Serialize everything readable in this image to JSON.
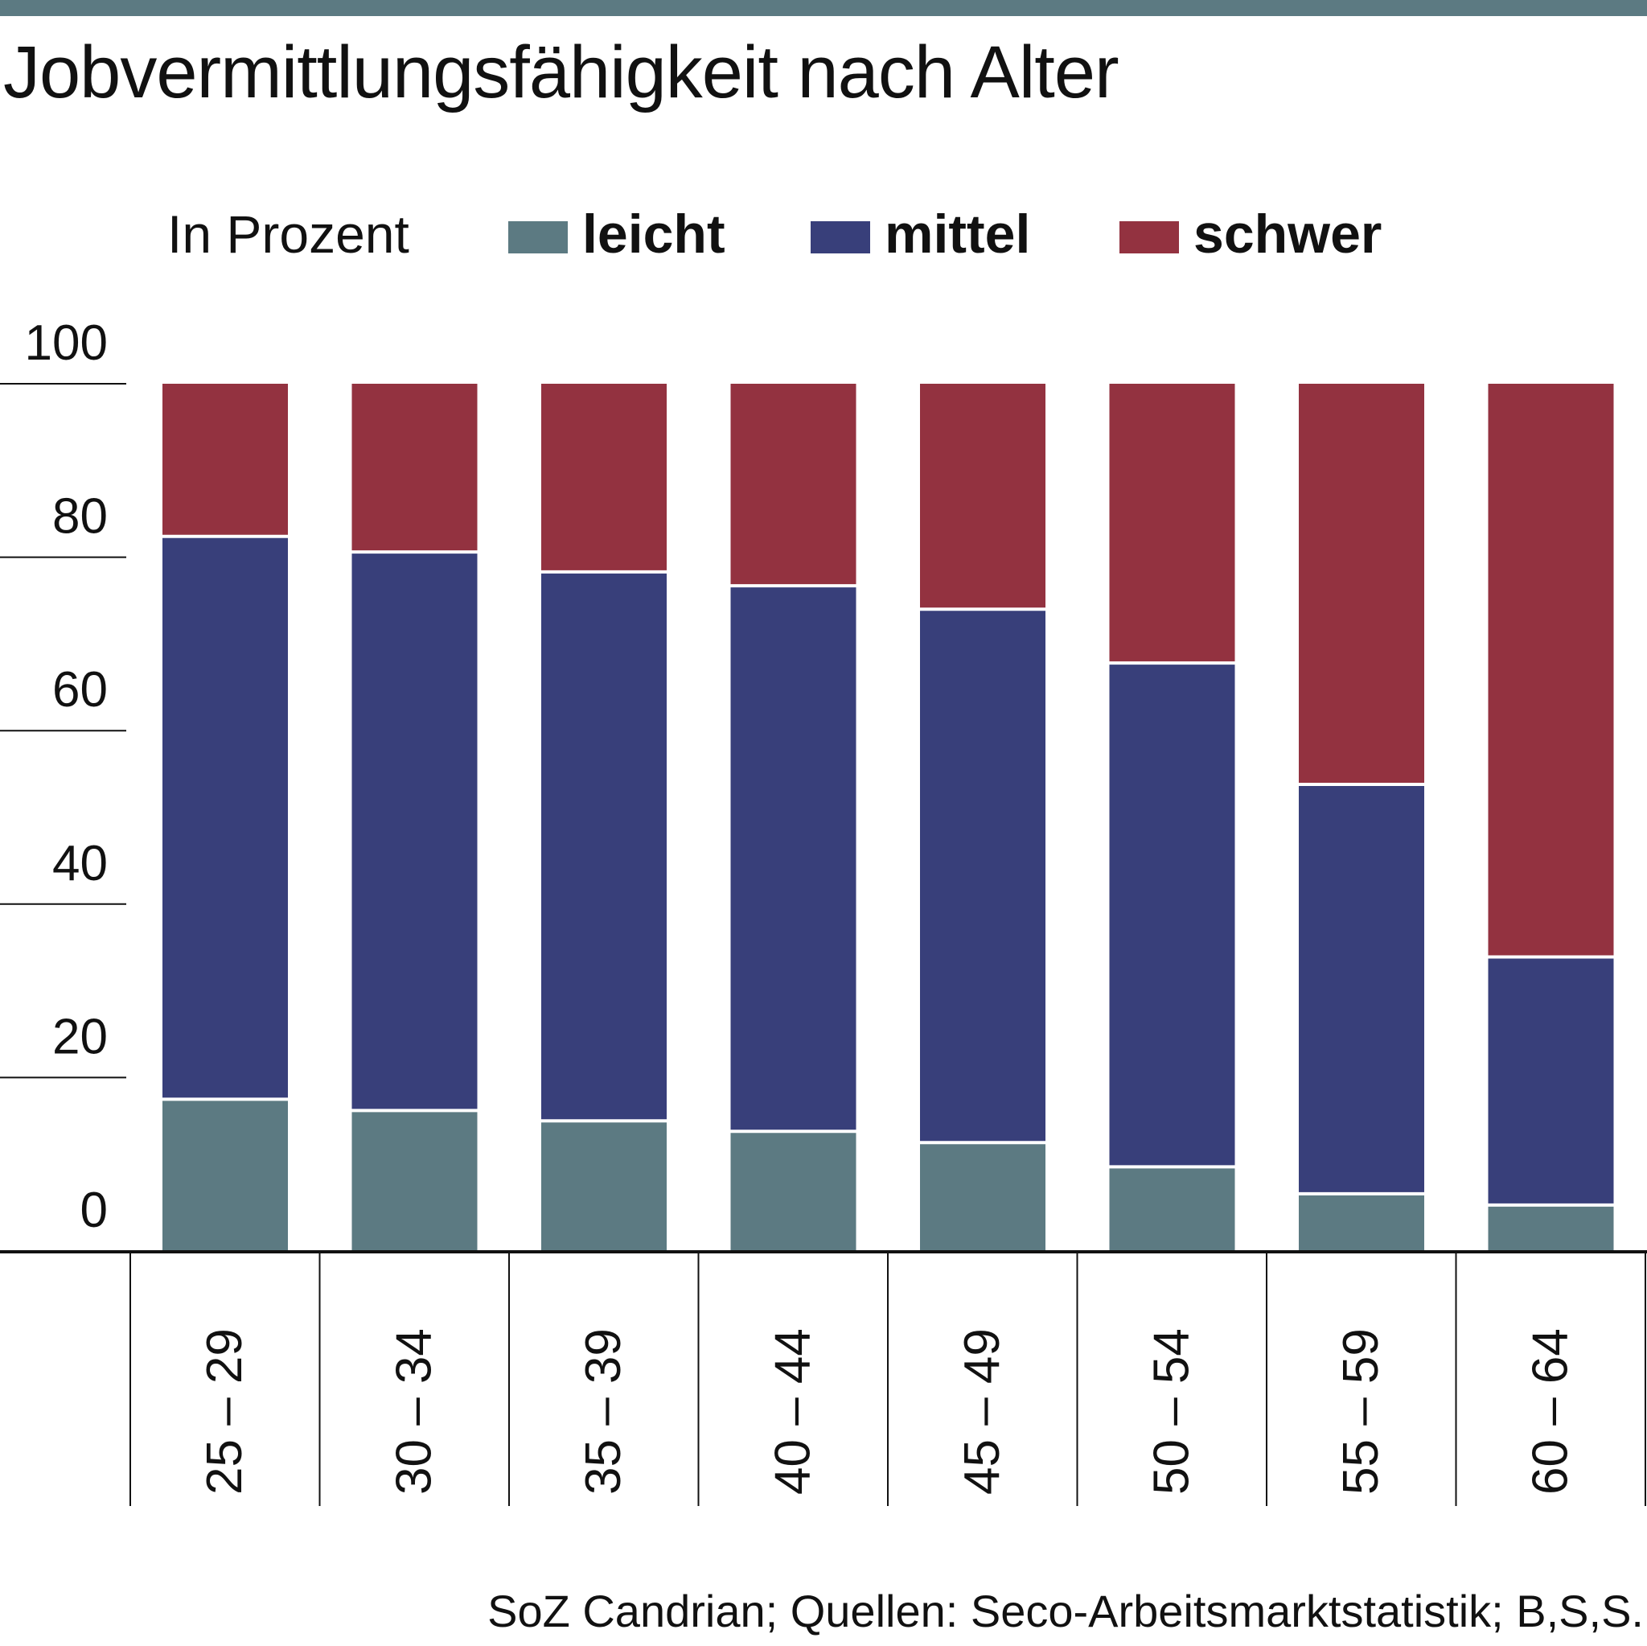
{
  "chart_data": {
    "type": "bar",
    "stacked": true,
    "title": "Jobvermittlungsfähigkeit nach Alter",
    "ylabel": "In Prozent",
    "ylim": [
      0,
      100
    ],
    "yticks": [
      "0",
      "20",
      "40",
      "60",
      "80",
      "100"
    ],
    "categories": [
      "25 – 29",
      "30 – 34",
      "35 – 39",
      "40 – 44",
      "45 – 49",
      "50 – 54",
      "55 – 59",
      "60 – 64"
    ],
    "series": [
      {
        "name": "leicht",
        "color": "#5c7a82",
        "values": [
          17.5,
          16.2,
          15.0,
          13.8,
          12.5,
          9.7,
          6.6,
          5.3
        ]
      },
      {
        "name": "mittel",
        "color": "#383f7a",
        "values": [
          64.9,
          64.4,
          63.3,
          62.9,
          61.5,
          58.1,
          47.2,
          28.6
        ]
      },
      {
        "name": "schwer",
        "color": "#933240",
        "values": [
          17.6,
          19.4,
          21.7,
          23.3,
          26.0,
          32.2,
          46.2,
          66.1
        ]
      }
    ],
    "legend_position": "top",
    "grid": false
  },
  "source": "SoZ Candrian; Quellen: Seco-Arbeitsmarktstatistik; B,S,S."
}
